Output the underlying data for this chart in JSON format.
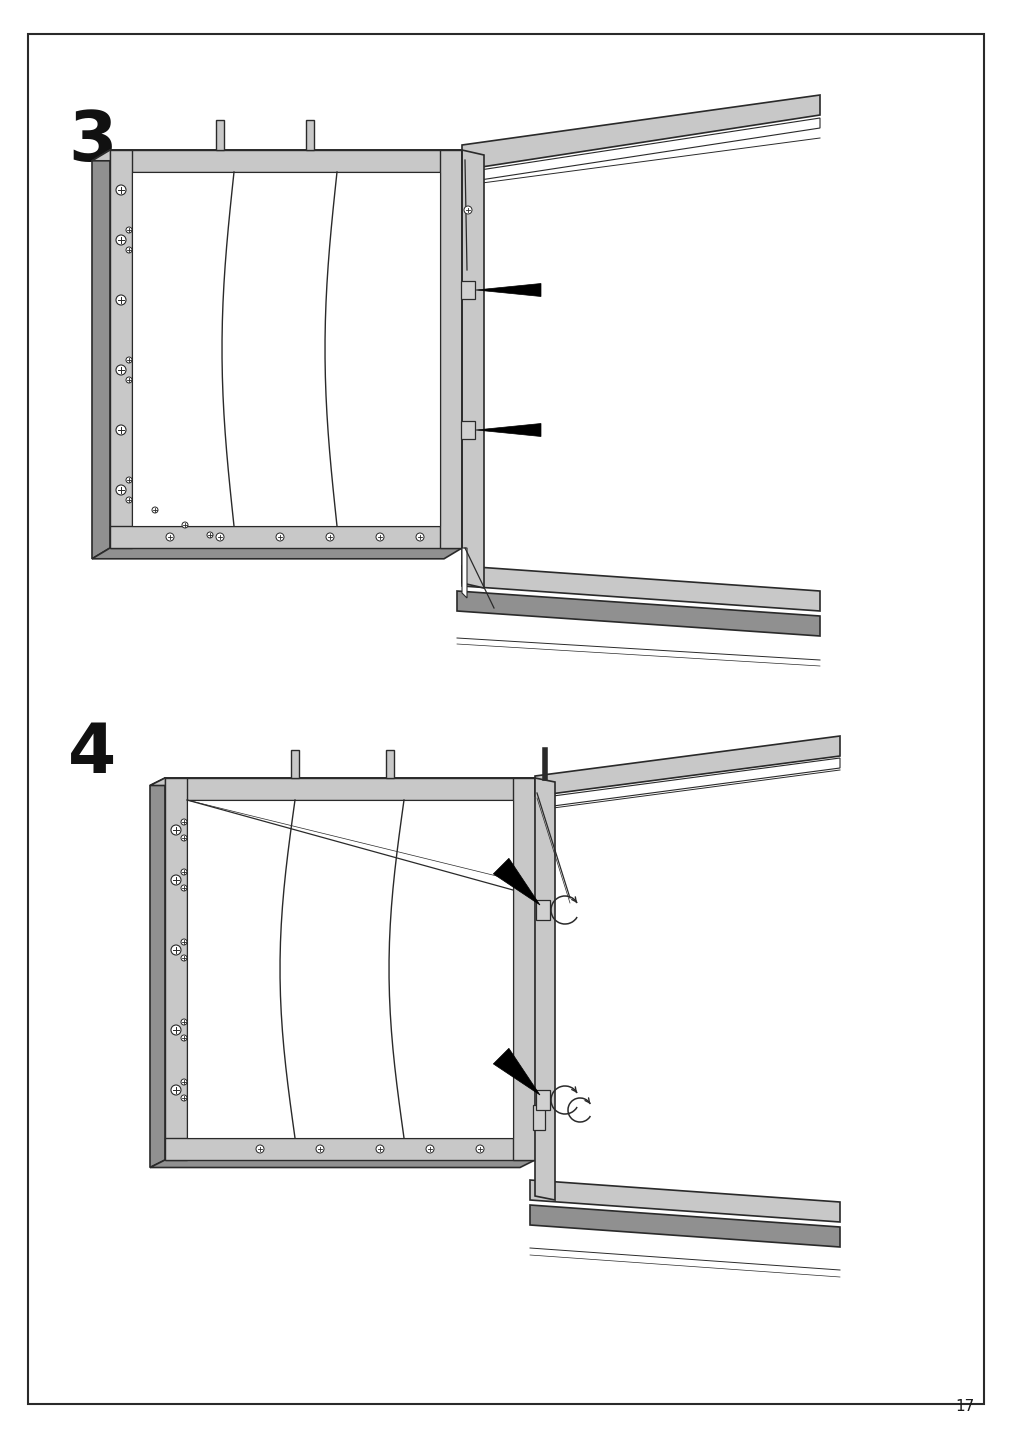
{
  "page_number": "17",
  "step3_label": "3",
  "step4_label": "4",
  "bg_color": "#ffffff",
  "border_color": "#2a2a2a",
  "line_color": "#2a2a2a",
  "frame_gray": "#c8c8c8",
  "frame_dark": "#909090",
  "frame_light": "#e8e8e8",
  "inner_bg": "#f0f0f0"
}
